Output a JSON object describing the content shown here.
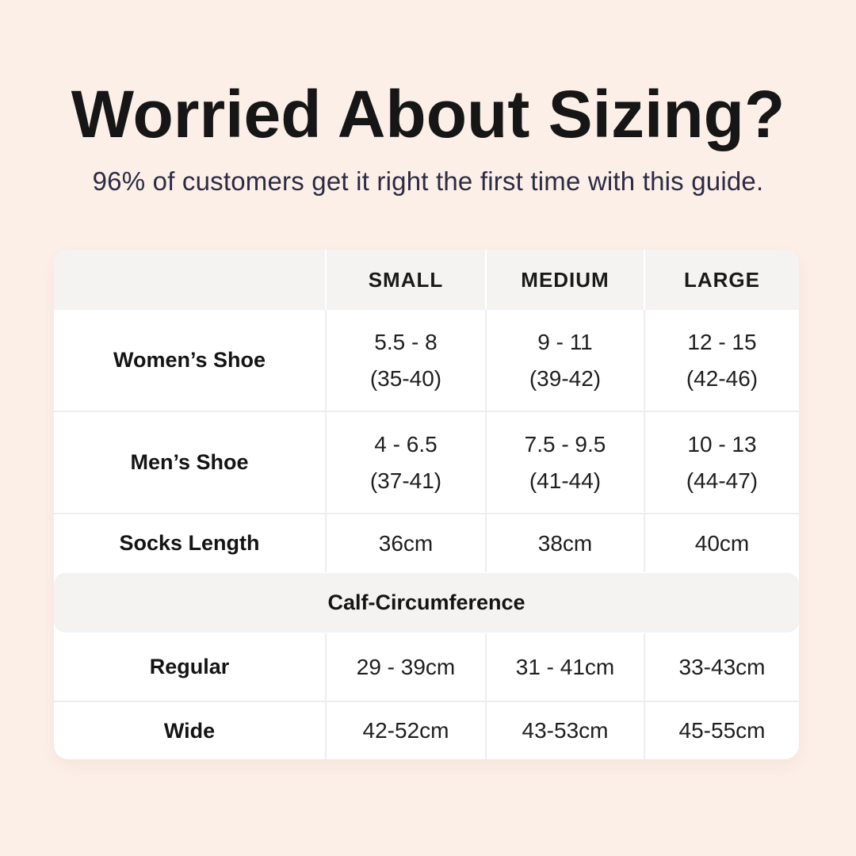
{
  "header": {
    "title": "Worried About Sizing?",
    "subtitle": "96% of customers get it right the first time with this guide."
  },
  "table": {
    "column_headers": [
      "SMALL",
      "MEDIUM",
      "LARGE"
    ],
    "rows": [
      {
        "label": "Women’s Shoe",
        "cells": [
          [
            "5.5 - 8",
            "(35-40)"
          ],
          [
            "9 - 11",
            "(39-42)"
          ],
          [
            "12 - 15",
            "(42-46)"
          ]
        ]
      },
      {
        "label": "Men’s Shoe",
        "cells": [
          [
            "4 - 6.5",
            "(37-41)"
          ],
          [
            "7.5 - 9.5",
            "(41-44)"
          ],
          [
            "10 - 13",
            "(44-47)"
          ]
        ]
      },
      {
        "label": "Socks Length",
        "cells": [
          [
            "36cm"
          ],
          [
            "38cm"
          ],
          [
            "40cm"
          ]
        ]
      }
    ],
    "section_header": "Calf-Circumference",
    "calf_rows": [
      {
        "label": "Regular",
        "cells": [
          [
            "29 - 39cm"
          ],
          [
            "31 - 41cm"
          ],
          [
            "33-43cm"
          ]
        ]
      },
      {
        "label": "Wide",
        "cells": [
          [
            "42-52cm"
          ],
          [
            "43-53cm"
          ],
          [
            "45-55cm"
          ]
        ]
      }
    ]
  },
  "colors": {
    "page_bg": "#FCEFE7",
    "card_bg": "#FFFFFF",
    "band_bg": "#F4F3F2",
    "grid_line": "#EFEDEE",
    "title_color": "#161616",
    "subtitle_color": "#2B2B44",
    "text_color": "#1E1E1E"
  }
}
